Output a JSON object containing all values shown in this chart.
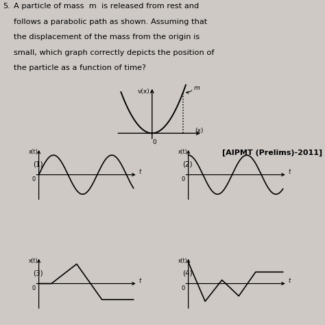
{
  "background_color": "#cec9c5",
  "text_color": "#000000",
  "question_number": "5.",
  "question_text_lines": [
    "A particle of mass  m  is released from rest and",
    "follows a parabolic path as shown. Assuming that",
    "the displacement of the mass from the origin is",
    "small, which graph correctly depicts the position of",
    "the particle as a function of time?"
  ],
  "citation": "[AIPMT (Prelims)-2011]",
  "parabola_label_vx": "v(x)",
  "parabola_label_xaxis": "(x)",
  "parabola_label_m": "m",
  "parabola_label_0": "0",
  "subplot_labels": [
    "(1)",
    "(2)",
    "(3)",
    "(4)"
  ],
  "subplot_axis_label": "x(t)",
  "subplot_time_label": "t"
}
